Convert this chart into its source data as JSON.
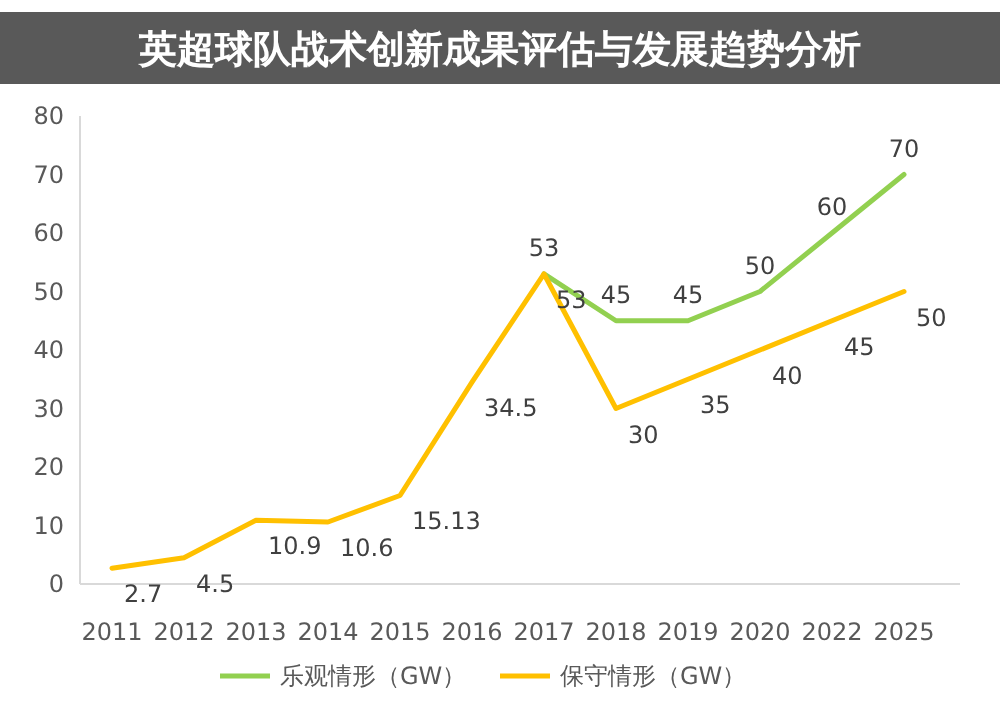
{
  "chart_data": {
    "type": "line",
    "title": "英超球队战术创新成果评估与发展趋势分析",
    "categories": [
      "2011",
      "2012",
      "2013",
      "2014",
      "2015",
      "2016",
      "2017",
      "2018",
      "2019",
      "2020",
      "2022",
      "2025"
    ],
    "series": [
      {
        "name": "乐观情形（GW）",
        "color": "#92d050",
        "values": [
          null,
          null,
          null,
          null,
          null,
          null,
          53,
          45,
          45,
          50,
          60,
          70
        ]
      },
      {
        "name": "保守情形（GW）",
        "color": "#ffc000",
        "values": [
          2.7,
          4.5,
          10.9,
          10.6,
          15.13,
          34.5,
          53,
          30,
          35,
          40,
          45,
          50
        ]
      }
    ],
    "ylim": [
      0,
      80
    ],
    "yticks": [
      0,
      10,
      20,
      30,
      40,
      50,
      60,
      70,
      80
    ],
    "data_labels": true,
    "legend": "bottom",
    "marker": "none",
    "line_style": "solid"
  }
}
